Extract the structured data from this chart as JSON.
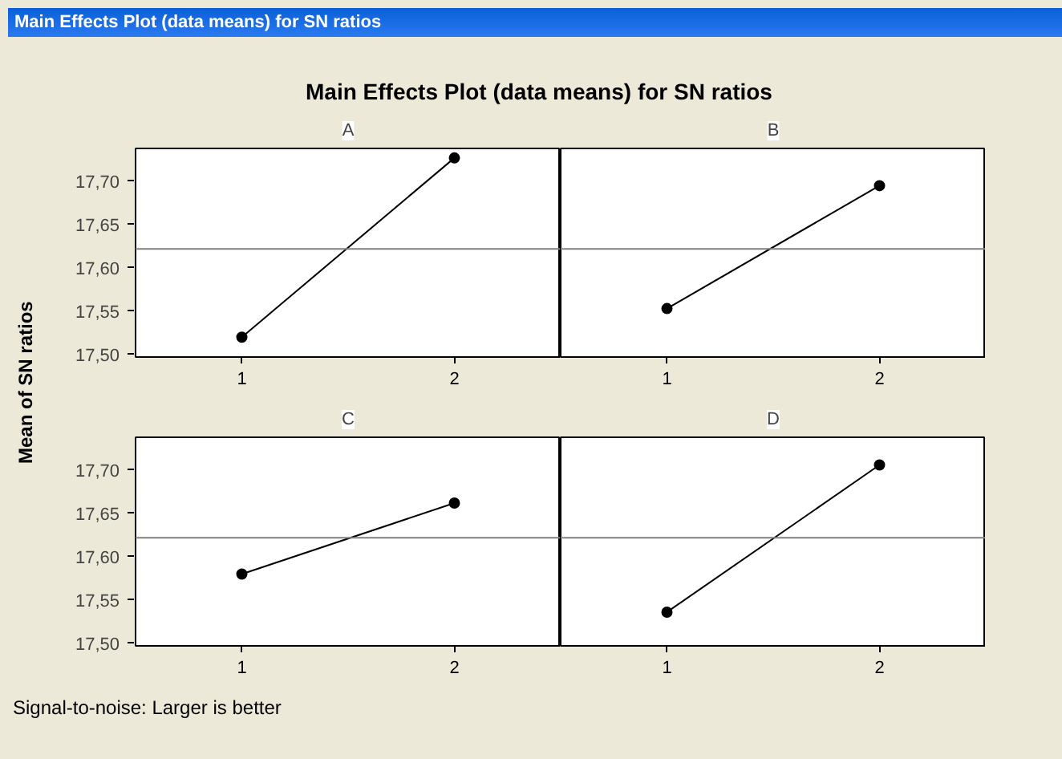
{
  "chart_data": [
    {
      "type": "line",
      "title": "A",
      "categories": [
        "1",
        "2"
      ],
      "values": [
        17.52,
        17.727
      ],
      "color": "#000000",
      "marker": "circle",
      "ylim": [
        17.497,
        17.738
      ],
      "yticks": [
        {
          "value": 17.5,
          "label": "17,50"
        },
        {
          "value": 17.55,
          "label": "17,55"
        },
        {
          "value": 17.6,
          "label": "17,60"
        },
        {
          "value": 17.65,
          "label": "17,65"
        },
        {
          "value": 17.7,
          "label": "17,70"
        }
      ],
      "ref_lines": [
        {
          "axis": "y",
          "value": 17.622,
          "color": "#808080"
        }
      ],
      "ylabel": "Mean of SN ratios",
      "annotations": [
        "Main Effects Plot (data means) for SN ratios",
        "Main Effects Plot (data means) for SN ratios",
        "Signal-to-noise: Larger is better"
      ],
      "grid": false
    },
    {
      "type": "line",
      "title": "B",
      "categories": [
        "1",
        "2"
      ],
      "values": [
        17.553,
        17.695
      ],
      "color": "#000000",
      "marker": "circle",
      "ylim": [
        17.497,
        17.738
      ],
      "ref_lines": [
        {
          "axis": "y",
          "value": 17.622,
          "color": "#808080"
        }
      ],
      "tick_labels": "x",
      "grid": false
    },
    {
      "type": "line",
      "title": "C",
      "categories": [
        "1",
        "2"
      ],
      "values": [
        17.58,
        17.662
      ],
      "color": "#000000",
      "marker": "circle",
      "ylim": [
        17.497,
        17.738
      ],
      "yticks": [
        {
          "value": 17.5,
          "label": "17,50"
        },
        {
          "value": 17.55,
          "label": "17,55"
        },
        {
          "value": 17.6,
          "label": "17,60"
        },
        {
          "value": 17.65,
          "label": "17,65"
        },
        {
          "value": 17.7,
          "label": "17,70"
        }
      ],
      "ref_lines": [
        {
          "axis": "y",
          "value": 17.622,
          "color": "#808080"
        }
      ],
      "grid": false
    },
    {
      "type": "line",
      "title": "D",
      "categories": [
        "1",
        "2"
      ],
      "values": [
        17.536,
        17.706
      ],
      "color": "#000000",
      "marker": "circle",
      "ylim": [
        17.497,
        17.738
      ],
      "ref_lines": [
        {
          "axis": "y",
          "value": 17.622,
          "color": "#808080"
        }
      ],
      "tick_labels": "x",
      "grid": false
    }
  ]
}
